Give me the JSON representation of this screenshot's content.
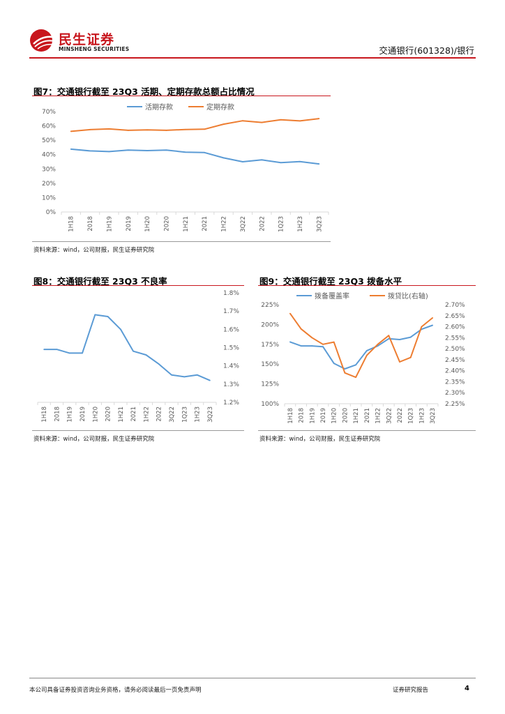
{
  "header": {
    "logo_cn": "民生证券",
    "logo_en": "MINSHENG SECURITIES",
    "stock": "交通银行(601328)/银行"
  },
  "figures": {
    "fig7": {
      "title": "图7：交通银行截至 23Q3 活期、定期存款总额占比情况",
      "source": "资料来源：wind，公司财报，民生证券研究院"
    },
    "fig8": {
      "title": "图8：交通银行截至 23Q3 不良率",
      "source": "资料来源：wind，公司财报，民生证券研究院"
    },
    "fig9": {
      "title": "图9：交通银行截至 23Q3 拨备水平",
      "source": "资料来源：wind，公司财报，民生证券研究院"
    }
  },
  "footer": {
    "disclaimer": "本公司具备证券投资咨询业务资格，请务必阅读最后一页免责声明",
    "report_type": "证券研究报告",
    "page": "4"
  },
  "colors": {
    "accent": "#c8161d",
    "blue": "#5b9bd5",
    "orange": "#ed7d31"
  },
  "chart_data": [
    {
      "id": "fig7",
      "type": "line",
      "categories": [
        "1H18",
        "2018",
        "1H19",
        "2019",
        "1H20",
        "2020",
        "1H21",
        "2021",
        "1H22",
        "3Q22",
        "2022",
        "1Q23",
        "1H23",
        "3Q23"
      ],
      "series": [
        {
          "name": "活期存款",
          "values": [
            43.8,
            42.6,
            42.1,
            43.1,
            42.8,
            43.1,
            41.7,
            41.4,
            37.7,
            35.0,
            36.3,
            34.4,
            35.1,
            33.5
          ]
        },
        {
          "name": "定期存款",
          "values": [
            56.2,
            57.4,
            57.9,
            56.9,
            57.2,
            56.9,
            57.5,
            57.7,
            61.2,
            63.6,
            62.4,
            64.3,
            63.5,
            65.1
          ]
        }
      ],
      "yticks": [
        "0%",
        "10%",
        "20%",
        "30%",
        "40%",
        "50%",
        "60%",
        "70%"
      ],
      "ylim": [
        0,
        70
      ],
      "legend": "top"
    },
    {
      "id": "fig8",
      "type": "line",
      "categories": [
        "1H18",
        "2018",
        "1H19",
        "2019",
        "1H20",
        "2020",
        "1H21",
        "2021",
        "1H22",
        "2022",
        "3Q22",
        "1Q23",
        "1H23",
        "3Q23"
      ],
      "series": [
        {
          "values": [
            1.49,
            1.49,
            1.47,
            1.47,
            1.68,
            1.67,
            1.6,
            1.48,
            1.46,
            1.41,
            1.35,
            1.34,
            1.35,
            1.32
          ]
        }
      ],
      "yticks": [
        "1.2%",
        "1.3%",
        "1.4%",
        "1.5%",
        "1.6%",
        "1.7%",
        "1.8%"
      ],
      "ylim": [
        1.2,
        1.8
      ],
      "axis": "right"
    },
    {
      "id": "fig9",
      "type": "line",
      "categories": [
        "1H18",
        "2018",
        "1H19",
        "2019",
        "1H20",
        "2020",
        "1H21",
        "2021",
        "1H22",
        "3Q22",
        "2022",
        "1Q23",
        "1H23",
        "3Q23"
      ],
      "series": [
        {
          "name": "拨备覆盖率",
          "axis": "left",
          "values": [
            178,
            173,
            173,
            172,
            151,
            144,
            149,
            167,
            173,
            182,
            181,
            184,
            194,
            199
          ]
        },
        {
          "name": "拨贷比(右轴)",
          "axis": "right",
          "values": [
            2.66,
            2.59,
            2.55,
            2.52,
            2.53,
            2.39,
            2.37,
            2.47,
            2.52,
            2.56,
            2.44,
            2.46,
            2.6,
            2.64
          ]
        }
      ],
      "yticks_left": [
        "100%",
        "125%",
        "150%",
        "175%",
        "200%",
        "225%"
      ],
      "ylim_left": [
        100,
        225
      ],
      "yticks_right": [
        "2.25%",
        "2.30%",
        "2.35%",
        "2.40%",
        "2.45%",
        "2.50%",
        "2.55%",
        "2.60%",
        "2.65%",
        "2.70%"
      ],
      "ylim_right": [
        2.25,
        2.7
      ],
      "legend": "top"
    }
  ]
}
